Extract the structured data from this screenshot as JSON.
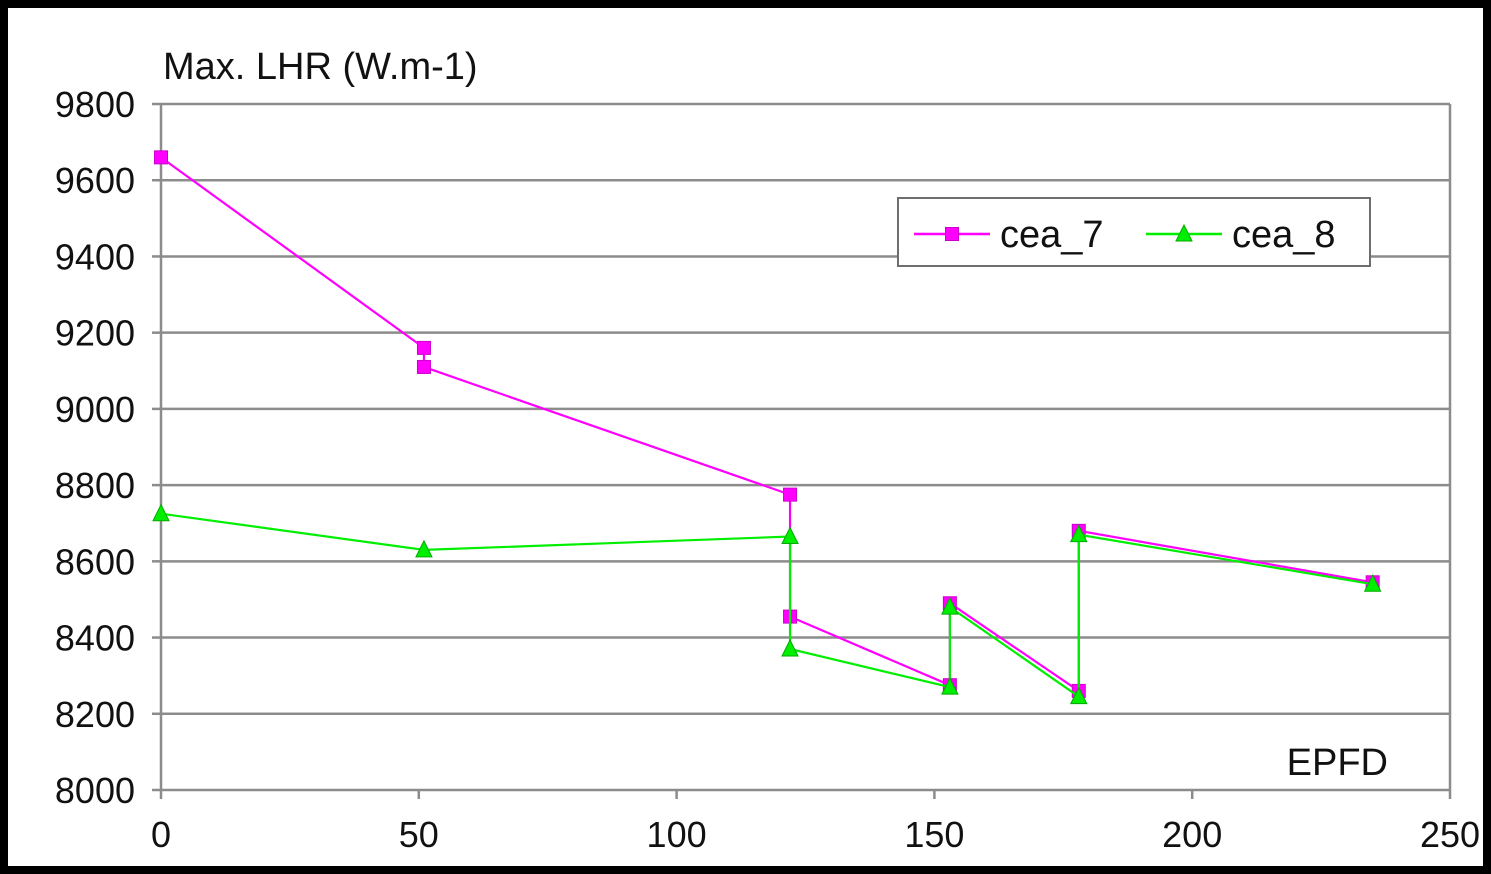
{
  "chart_data": {
    "type": "line",
    "ylabel": "Max. LHR (W.m-1)",
    "xlabel": "EPFD",
    "xlim": [
      0,
      250
    ],
    "ylim": [
      8000,
      9800
    ],
    "xticks": [
      0,
      50,
      100,
      150,
      200,
      250
    ],
    "yticks": [
      8000,
      8200,
      8400,
      8600,
      8800,
      9000,
      9200,
      9400,
      9600,
      9800
    ],
    "grid": "horizontal",
    "legend_position": "top-right",
    "series": [
      {
        "name": "cea_7",
        "color": "#ff00ff",
        "marker": "square",
        "x": [
          0,
          51,
          51,
          122,
          122,
          153,
          153,
          178,
          178,
          235
        ],
        "y": [
          9660,
          9160,
          9110,
          8775,
          8455,
          8275,
          8490,
          8260,
          8680,
          8545
        ]
      },
      {
        "name": "cea_8",
        "color": "#00ee00",
        "marker": "triangle",
        "x": [
          0,
          51,
          122,
          122,
          153,
          153,
          178,
          178,
          235
        ],
        "y": [
          8725,
          8630,
          8665,
          8370,
          8270,
          8480,
          8245,
          8670,
          8540
        ]
      }
    ]
  }
}
